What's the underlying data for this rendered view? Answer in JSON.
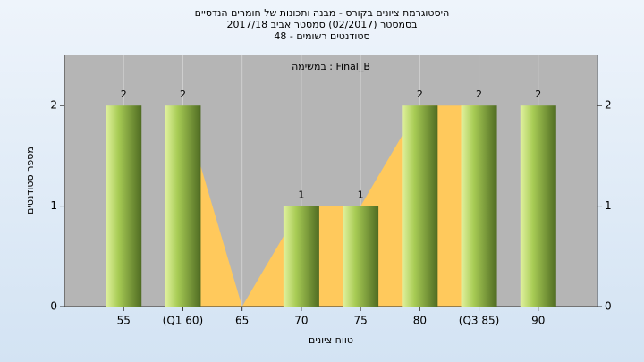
{
  "chart_data": {
    "type": "bar",
    "title": "היסטוגרמת ציונים בקורס - מבנה ותכונות של חומרים הנדסיים",
    "subtitle": "בסמסטר  (02/2017)  סמסטר אביב 2017/18",
    "subtitle2": "סטודנטים רשומים - 48",
    "annotation": "במשימה : Final_B",
    "x_label": "טווח ציונים",
    "y_label": "מספר סטודנטים",
    "categories": [
      "55",
      "(Q1 60)",
      "65",
      "70",
      "75",
      "80",
      "(Q3 85)",
      "90"
    ],
    "values": [
      2,
      2,
      0,
      1,
      1,
      2,
      2,
      2
    ],
    "value_labels": [
      "2",
      "2",
      null,
      "1",
      "1",
      "2",
      "2",
      "2"
    ],
    "color": "#9dc24a",
    "area_color": "#ffc95c",
    "ylim": [
      0,
      2.5
    ],
    "yticks": [
      0,
      1,
      2
    ],
    "y2lim": [
      0,
      2.5
    ],
    "y2ticks": [
      0,
      1,
      2
    ],
    "grid": true
  }
}
